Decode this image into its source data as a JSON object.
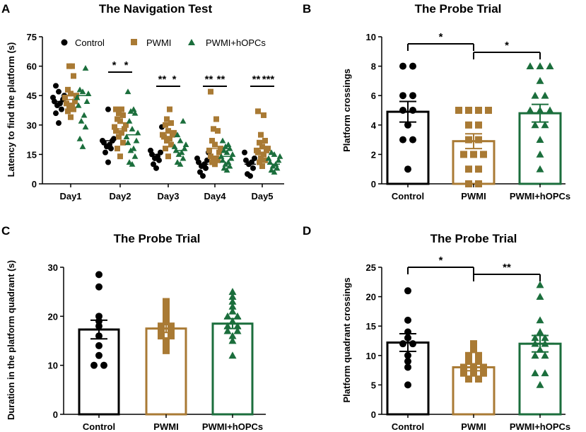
{
  "colors": {
    "control": "#000000",
    "pwmi": "#a97a34",
    "hopcs": "#1b6e3c"
  },
  "chart_data": [
    {
      "panel": "A",
      "type": "scatter",
      "title": "The Navigation Test",
      "ylabel": "Latency to find the platform (s)",
      "ylim": [
        0,
        75
      ],
      "yticks": [
        0,
        15,
        30,
        45,
        60,
        75
      ],
      "categories": [
        "Day1",
        "Day2",
        "Day3",
        "Day4",
        "Day5"
      ],
      "legend": [
        "Control",
        "PWMI",
        "PWMI+hOPCs"
      ],
      "series": [
        {
          "name": "Control",
          "values": [
            [
              31,
              36,
              38,
              40,
              41,
              42,
              43,
              44,
              45,
              47,
              50
            ],
            [
              11,
              16,
              18,
              19,
              20,
              21,
              22,
              22,
              23,
              38
            ],
            [
              8,
              10,
              12,
              13,
              14,
              15,
              16,
              17,
              29
            ],
            [
              4,
              6,
              8,
              9,
              10,
              11,
              12,
              13,
              16
            ],
            [
              4,
              5,
              8,
              10,
              11,
              12,
              13,
              16
            ]
          ]
        },
        {
          "name": "PWMI",
          "values": [
            [
              34,
              37,
              38,
              39,
              40,
              41,
              42,
              44,
              45,
              46,
              48,
              55,
              60,
              60
            ],
            [
              14,
              18,
              21,
              24,
              26,
              27,
              28,
              29,
              30,
              32,
              33,
              35,
              36,
              38,
              38
            ],
            [
              14,
              18,
              20,
              22,
              23,
              24,
              25,
              25,
              26,
              27,
              30,
              31,
              33,
              38
            ],
            [
              10,
              11,
              12,
              12,
              13,
              14,
              16,
              17,
              18,
              20,
              22,
              27,
              28,
              33,
              47
            ],
            [
              9,
              11,
              12,
              13,
              15,
              16,
              17,
              17,
              18,
              19,
              21,
              22,
              25,
              35,
              37
            ]
          ]
        },
        {
          "name": "PWMI+hOPCs",
          "values": [
            [
              19,
              23,
              29,
              32,
              35,
              40,
              42,
              44,
              46,
              47,
              48,
              59
            ],
            [
              10,
              11,
              14,
              17,
              18,
              21,
              22,
              24,
              26,
              28,
              32,
              36,
              37,
              38,
              47
            ],
            [
              10,
              11,
              13,
              15,
              16,
              17,
              18,
              19,
              20,
              22,
              25,
              32
            ],
            [
              7,
              8,
              9,
              10,
              11,
              12,
              13,
              14,
              15,
              16,
              17,
              18,
              19,
              20,
              22
            ],
            [
              6,
              7,
              8,
              9,
              10,
              11,
              12,
              13,
              14,
              15,
              16
            ]
          ]
        }
      ],
      "means": {
        "Control": [
          42,
          22,
          15,
          10,
          10
        ],
        "PWMI": [
          43,
          28,
          24,
          18,
          18
        ],
        "PWMI+hOPCs": [
          45,
          25,
          17,
          14,
          10
        ]
      },
      "significance": [
        {
          "day": "Day2",
          "a": "Control",
          "b": "PWMI",
          "label": "*"
        },
        {
          "day": "Day2",
          "a": "PWMI",
          "b": "PWMI+hOPCs",
          "label": "*"
        },
        {
          "day": "Day3",
          "a": "Control",
          "b": "PWMI",
          "label": "**"
        },
        {
          "day": "Day3",
          "a": "PWMI",
          "b": "PWMI+hOPCs",
          "label": "*"
        },
        {
          "day": "Day4",
          "a": "Control",
          "b": "PWMI",
          "label": "**"
        },
        {
          "day": "Day4",
          "a": "PWMI",
          "b": "PWMI+hOPCs",
          "label": "**"
        },
        {
          "day": "Day5",
          "a": "Control",
          "b": "PWMI",
          "label": "**"
        },
        {
          "day": "Day5",
          "a": "PWMI",
          "b": "PWMI+hOPCs",
          "label": "***"
        }
      ]
    },
    {
      "panel": "B",
      "type": "bar",
      "title": "The Probe Trial",
      "ylabel": "Platform crossings",
      "ylim": [
        0,
        10
      ],
      "yticks": [
        0,
        2,
        4,
        6,
        8,
        10
      ],
      "categories": [
        "Control",
        "PWMI",
        "PWMI+hOPCs"
      ],
      "values": [
        4.9,
        2.9,
        4.8
      ],
      "errors": [
        0.7,
        0.5,
        0.6
      ],
      "points": [
        [
          1,
          3,
          3,
          4,
          5,
          5,
          6,
          6,
          8,
          8
        ],
        [
          0,
          0,
          1,
          1,
          2,
          2,
          2,
          3,
          3,
          4,
          4,
          5,
          5,
          5,
          5
        ],
        [
          1,
          2,
          3,
          4,
          4,
          5,
          5,
          5,
          6,
          6,
          7,
          8,
          8,
          8
        ]
      ],
      "significance": [
        {
          "a": 0,
          "b": 1,
          "label": "*"
        },
        {
          "a": 1,
          "b": 2,
          "label": "*"
        }
      ]
    },
    {
      "panel": "C",
      "type": "bar",
      "title": "The Probe Trial",
      "ylabel": "Duration in the platform quadrant (s)",
      "ylim": [
        0,
        30
      ],
      "yticks": [
        0,
        10,
        20,
        30
      ],
      "categories": [
        "Control",
        "PWMI",
        "PWMI+hOPCs"
      ],
      "values": [
        17.3,
        17.5,
        18.5
      ],
      "errors": [
        1.9,
        0.8,
        1.0
      ],
      "points": [
        [
          10,
          10,
          12,
          14,
          16,
          18,
          19,
          20,
          26,
          28.5
        ],
        [
          13,
          14,
          15,
          16,
          16,
          17,
          17,
          18,
          18,
          19,
          20,
          21,
          22,
          23
        ],
        [
          12,
          15,
          16,
          17,
          17,
          18,
          18,
          19,
          20,
          20,
          21,
          22,
          23,
          24,
          25
        ]
      ],
      "significance": []
    },
    {
      "panel": "D",
      "type": "bar",
      "title": "The Probe Trial",
      "ylabel": "Platform quadrant crossings",
      "ylim": [
        0,
        25
      ],
      "yticks": [
        0,
        5,
        10,
        15,
        20,
        25
      ],
      "categories": [
        "Control",
        "PWMI",
        "PWMI+hOPCs"
      ],
      "values": [
        12.2,
        8.0,
        12.0
      ],
      "errors": [
        1.5,
        0.6,
        1.4
      ],
      "points": [
        [
          5,
          8,
          9,
          10,
          12,
          12,
          13,
          14,
          16,
          21
        ],
        [
          6,
          6,
          7,
          7,
          7,
          8,
          8,
          8,
          9,
          9,
          10,
          10,
          11,
          12
        ],
        [
          5,
          7,
          7,
          10,
          10,
          11,
          12,
          12,
          13,
          13,
          14,
          16,
          20,
          22
        ]
      ],
      "significance": [
        {
          "a": 0,
          "b": 1,
          "label": "*"
        },
        {
          "a": 1,
          "b": 2,
          "label": "**"
        }
      ]
    }
  ]
}
